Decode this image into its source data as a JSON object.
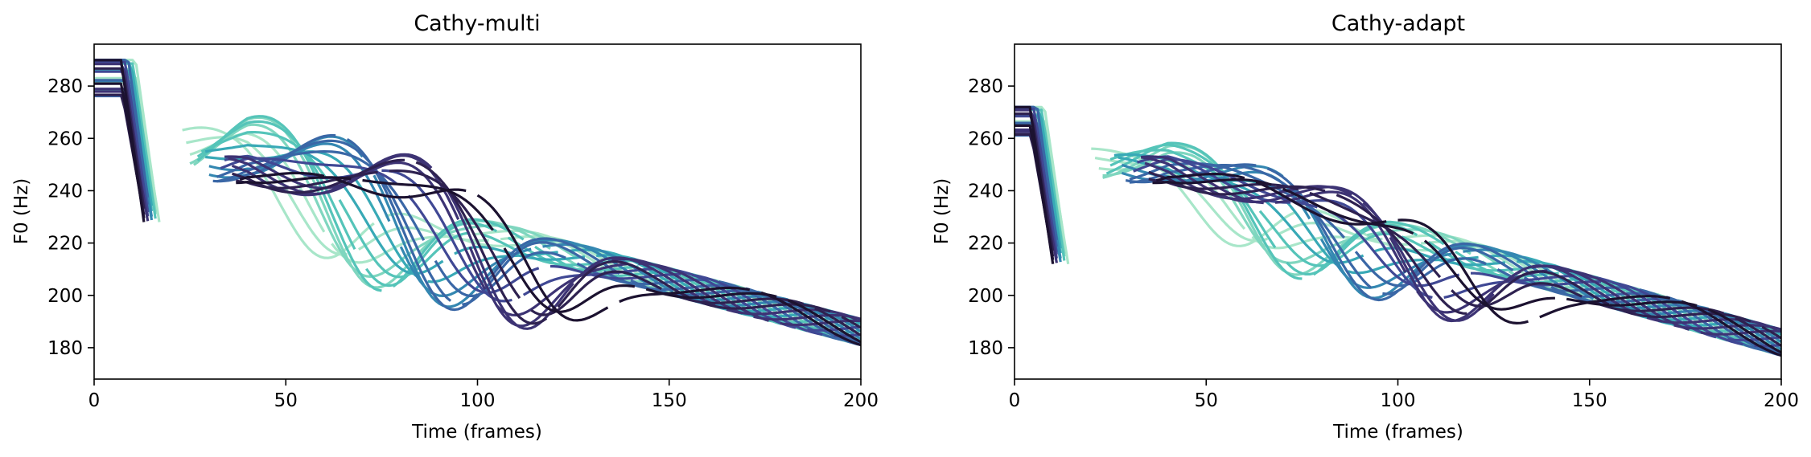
{
  "chart_data": [
    {
      "type": "line",
      "title": "Cathy-multi",
      "xlabel": "Time (frames)",
      "ylabel": "F0 (Hz)",
      "xlim": [
        0,
        200
      ],
      "ylim": [
        168,
        296
      ],
      "xticks": [
        0,
        50,
        100,
        150,
        200
      ],
      "yticks": [
        180,
        200,
        220,
        240,
        260,
        280
      ],
      "xtick_labels": [
        "0",
        "50",
        "100",
        "150",
        "200"
      ],
      "ytick_labels": [
        "180",
        "200",
        "220",
        "240",
        "260",
        "280"
      ],
      "grid": false,
      "legend": "none",
      "colormap": [
        "#a8e6c9",
        "#7fd6bf",
        "#55c4b9",
        "#38a9b6",
        "#3487b1",
        "#3a67a6",
        "#404894",
        "#3d3374",
        "#2e2150",
        "#1c1230"
      ],
      "num_series": 24,
      "style": "overlapping F0 contours, each shifted later in time; pitch starts flat near 276-290 Hz, drops steeply to ~230 Hz around frame 16, rises to a 250-270 Hz hump, then descends stepwise to ~180-195 Hz by frame 200"
    },
    {
      "type": "line",
      "title": "Cathy-adapt",
      "xlabel": "Time (frames)",
      "ylabel": "F0 (Hz)",
      "xlim": [
        0,
        200
      ],
      "ylim": [
        168,
        296
      ],
      "xticks": [
        0,
        50,
        100,
        150,
        200
      ],
      "yticks": [
        180,
        200,
        220,
        240,
        260,
        280
      ],
      "xtick_labels": [
        "0",
        "50",
        "100",
        "150",
        "200"
      ],
      "ytick_labels": [
        "180",
        "200",
        "220",
        "240",
        "260",
        "280"
      ],
      "grid": false,
      "legend": "none",
      "colormap": [
        "#a8e6c9",
        "#7fd6bf",
        "#55c4b9",
        "#38a9b6",
        "#3487b1",
        "#3a67a6",
        "#404894",
        "#3d3374",
        "#2e2150",
        "#1c1230"
      ],
      "num_series": 24,
      "style": "overlapping F0 contours, each shifted later in time; pitch starts flat near 262-272 Hz, drops steeply to ~210-225 Hz around frame 15, rises to a 245-258 Hz plateau, then descends stepwise to ~175-190 Hz by frame 200"
    }
  ]
}
